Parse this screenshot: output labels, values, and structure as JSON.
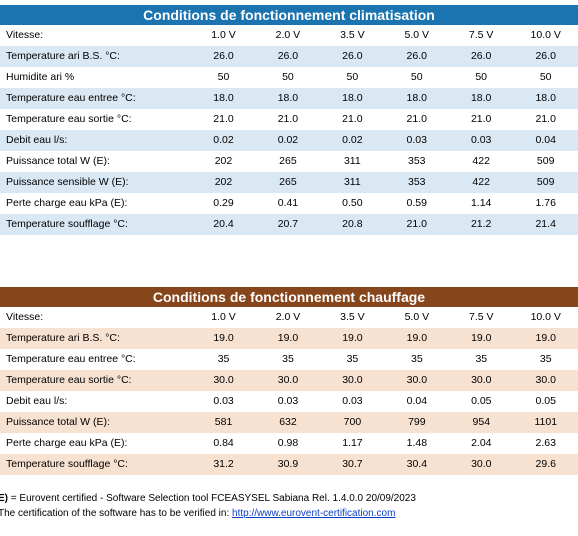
{
  "cooling": {
    "title": "Conditions de fonctionnement climatisation",
    "rows": [
      {
        "label": "Vitesse:",
        "values": [
          "1.0 V",
          "2.0 V",
          "3.5 V",
          "5.0 V",
          "7.5 V",
          "10.0 V"
        ]
      },
      {
        "label": "Temperature ari B.S. °C:",
        "values": [
          "26.0",
          "26.0",
          "26.0",
          "26.0",
          "26.0",
          "26.0"
        ]
      },
      {
        "label": "Humidite ari %",
        "values": [
          "50",
          "50",
          "50",
          "50",
          "50",
          "50"
        ]
      },
      {
        "label": "Temperature eau entree °C:",
        "values": [
          "18.0",
          "18.0",
          "18.0",
          "18.0",
          "18.0",
          "18.0"
        ]
      },
      {
        "label": "Temperature eau sortie °C:",
        "values": [
          "21.0",
          "21.0",
          "21.0",
          "21.0",
          "21.0",
          "21.0"
        ]
      },
      {
        "label": "Debit eau l/s:",
        "values": [
          "0.02",
          "0.02",
          "0.02",
          "0.03",
          "0.03",
          "0.04"
        ]
      },
      {
        "label": "Puissance total W (E):",
        "values": [
          "202",
          "265",
          "311",
          "353",
          "422",
          "509"
        ]
      },
      {
        "label": "Puissance sensible W (E):",
        "values": [
          "202",
          "265",
          "311",
          "353",
          "422",
          "509"
        ]
      },
      {
        "label": "Perte charge eau kPa (E):",
        "values": [
          "0.29",
          "0.41",
          "0.50",
          "0.59",
          "1.14",
          "1.76"
        ]
      },
      {
        "label": "Temperature soufflage °C:",
        "values": [
          "20.4",
          "20.7",
          "20.8",
          "21.0",
          "21.2",
          "21.4"
        ]
      }
    ]
  },
  "heating": {
    "title": "Conditions de fonctionnement chauffage",
    "rows": [
      {
        "label": "Vitesse:",
        "values": [
          "1.0 V",
          "2.0 V",
          "3.5 V",
          "5.0 V",
          "7.5 V",
          "10.0 V"
        ]
      },
      {
        "label": "Temperature ari B.S. °C:",
        "values": [
          "19.0",
          "19.0",
          "19.0",
          "19.0",
          "19.0",
          "19.0"
        ]
      },
      {
        "label": "Temperature eau entree °C:",
        "values": [
          "35",
          "35",
          "35",
          "35",
          "35",
          "35"
        ]
      },
      {
        "label": "Temperature eau sortie °C:",
        "values": [
          "30.0",
          "30.0",
          "30.0",
          "30.0",
          "30.0",
          "30.0"
        ]
      },
      {
        "label": "Debit eau l/s:",
        "values": [
          "0.03",
          "0.03",
          "0.03",
          "0.04",
          "0.05",
          "0.05"
        ]
      },
      {
        "label": "Puissance total W (E):",
        "values": [
          "581",
          "632",
          "700",
          "799",
          "954",
          "1101"
        ]
      },
      {
        "label": "Perte charge eau kPa (E):",
        "values": [
          "0.84",
          "0.98",
          "1.17",
          "1.48",
          "2.04",
          "2.63"
        ]
      },
      {
        "label": "Temperature soufflage °C:",
        "values": [
          "31.2",
          "30.9",
          "30.7",
          "30.4",
          "30.0",
          "29.6"
        ]
      }
    ]
  },
  "footer": {
    "line1_bold": "E)",
    "line1_text": " = Eurovent certified - Software Selection tool FCEASYSEL Sabiana Rel. 1.4.0.0 20/09/2023",
    "line2_text": "The certification of the software has to be verified in: ",
    "line2_link": "http://www.eurovent-certification.com"
  }
}
